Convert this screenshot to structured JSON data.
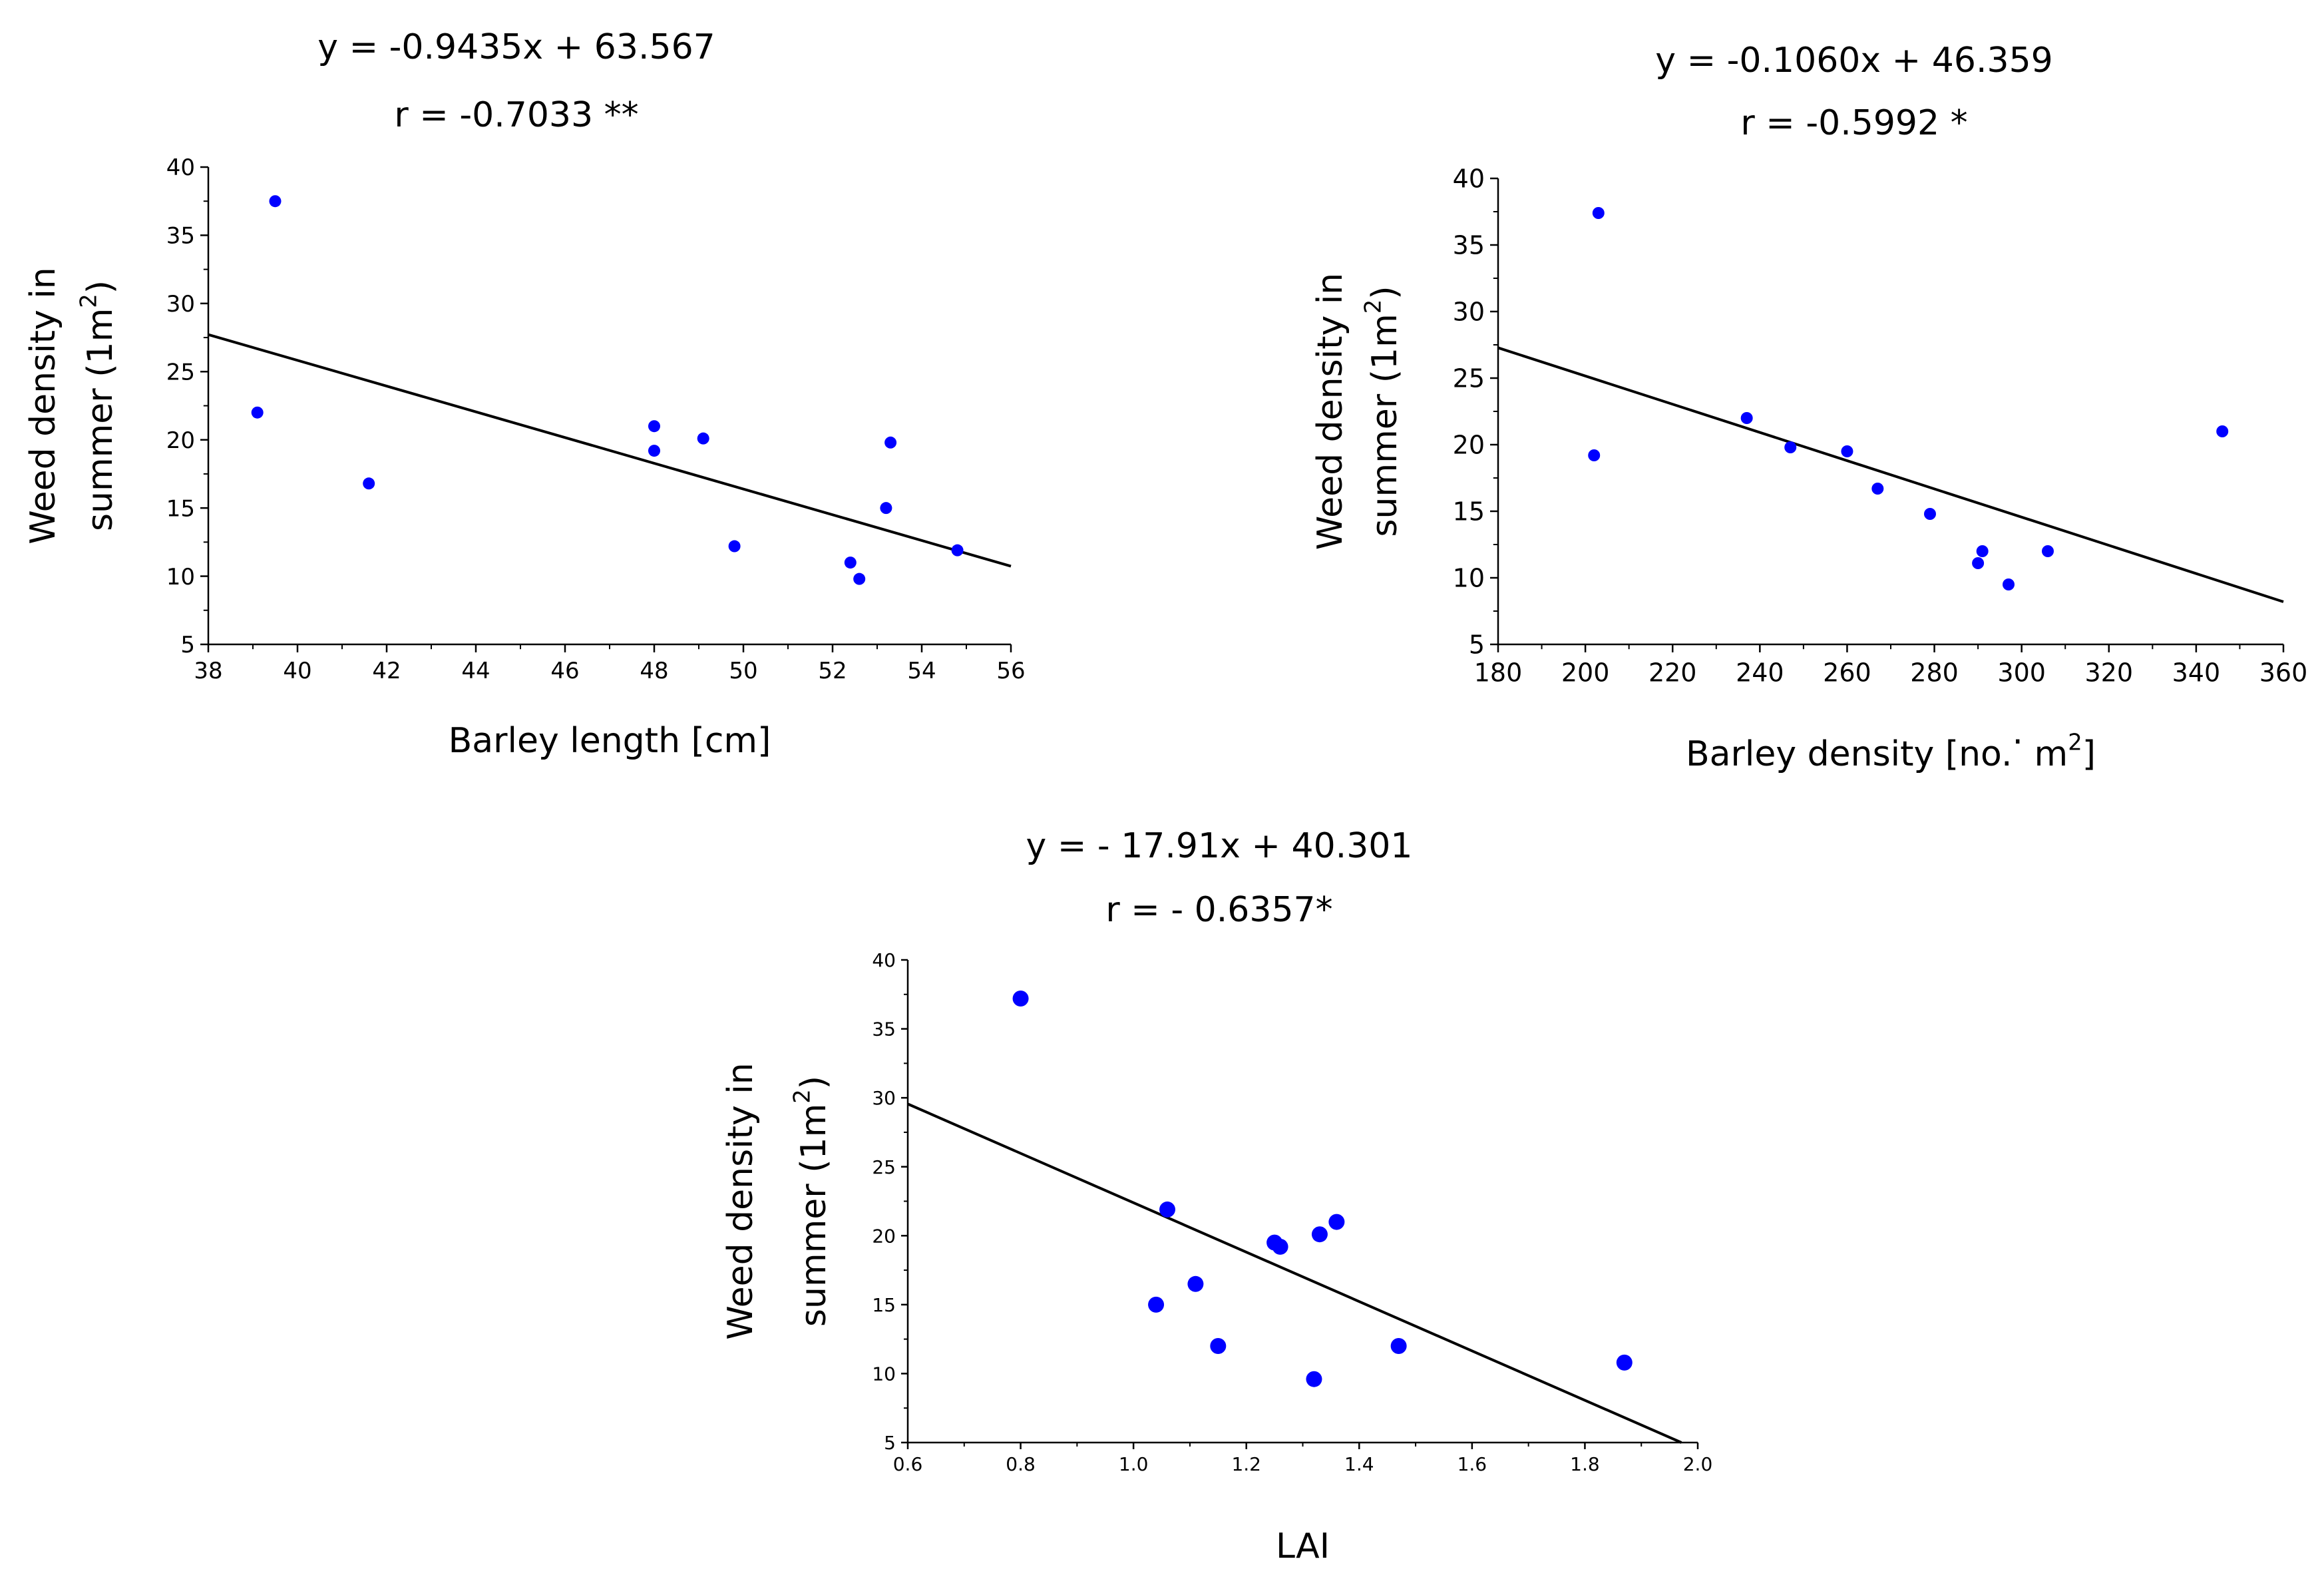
{
  "chart_data": [
    {
      "type": "scatter",
      "title": "y = -0.9435x + 63.567",
      "subtitle": "r =  -0.7033 **",
      "xlabel": "Barley length [cm]",
      "ylabel_line1": "Weed density in",
      "ylabel_line2": "summer (1m",
      "ylabel_sup": "2",
      "ylabel_close": ")",
      "xlim": [
        38,
        56
      ],
      "ylim": [
        5,
        40
      ],
      "xticks": [
        38,
        40,
        42,
        44,
        46,
        48,
        50,
        52,
        54,
        56
      ],
      "yticks": [
        5,
        10,
        15,
        20,
        25,
        30,
        35,
        40
      ],
      "points": [
        {
          "x": 39.1,
          "y": 22.0
        },
        {
          "x": 39.5,
          "y": 37.5
        },
        {
          "x": 41.6,
          "y": 16.8
        },
        {
          "x": 48.0,
          "y": 21.0
        },
        {
          "x": 48.0,
          "y": 19.2
        },
        {
          "x": 49.1,
          "y": 20.1
        },
        {
          "x": 49.8,
          "y": 12.2
        },
        {
          "x": 52.4,
          "y": 11.0
        },
        {
          "x": 52.6,
          "y": 9.8
        },
        {
          "x": 53.2,
          "y": 15.0
        },
        {
          "x": 53.3,
          "y": 19.8
        },
        {
          "x": 54.8,
          "y": 11.9
        }
      ],
      "fit": {
        "slope": -0.9435,
        "intercept": 63.567
      }
    },
    {
      "type": "scatter",
      "title": "y = -0.1060x + 46.359",
      "subtitle": "r = -0.5992 *",
      "xlabel": "Barley density [no.",
      "xlabel_dot": "·",
      "xlabel_tail": " m",
      "xlabel_sup": "2",
      "xlabel_close": "]",
      "ylabel_line1": "Weed density in",
      "ylabel_line2": "summer (1m",
      "ylabel_sup": "2",
      "ylabel_close": ")",
      "xlim": [
        180,
        360
      ],
      "ylim": [
        5,
        40
      ],
      "xticks": [
        180,
        200,
        220,
        240,
        260,
        280,
        300,
        320,
        340,
        360
      ],
      "yticks": [
        5,
        10,
        15,
        20,
        25,
        30,
        35,
        40
      ],
      "points": [
        {
          "x": 203,
          "y": 37.4
        },
        {
          "x": 202,
          "y": 19.2
        },
        {
          "x": 237,
          "y": 22.0
        },
        {
          "x": 247,
          "y": 19.8
        },
        {
          "x": 260,
          "y": 19.5
        },
        {
          "x": 267,
          "y": 16.7
        },
        {
          "x": 279,
          "y": 14.8
        },
        {
          "x": 290,
          "y": 11.1
        },
        {
          "x": 291,
          "y": 12.0
        },
        {
          "x": 297,
          "y": 9.5
        },
        {
          "x": 306,
          "y": 12.0
        },
        {
          "x": 346,
          "y": 21.0
        }
      ],
      "fit": {
        "slope": -0.106,
        "intercept": 46.359
      }
    },
    {
      "type": "scatter",
      "title": "y = - 17.91x + 40.301",
      "subtitle": "r =  - 0.6357*",
      "xlabel": "LAI",
      "ylabel_line1": "Weed density in",
      "ylabel_line2": "summer (1m",
      "ylabel_sup": "2",
      "ylabel_close": ")",
      "xlim": [
        0.6,
        2.0
      ],
      "ylim": [
        5,
        40
      ],
      "xticks": [
        "0.6",
        "0.8",
        "1.0",
        "1.2",
        "1.4",
        "1.6",
        "1.8",
        "2.0"
      ],
      "yticks": [
        5,
        10,
        15,
        20,
        25,
        30,
        35,
        40
      ],
      "points": [
        {
          "x": 0.8,
          "y": 37.2
        },
        {
          "x": 1.06,
          "y": 21.9
        },
        {
          "x": 1.04,
          "y": 15.0
        },
        {
          "x": 1.11,
          "y": 16.5
        },
        {
          "x": 1.15,
          "y": 12.0
        },
        {
          "x": 1.25,
          "y": 19.5
        },
        {
          "x": 1.26,
          "y": 19.2
        },
        {
          "x": 1.33,
          "y": 20.1
        },
        {
          "x": 1.36,
          "y": 21.0
        },
        {
          "x": 1.32,
          "y": 9.6
        },
        {
          "x": 1.47,
          "y": 12.0
        },
        {
          "x": 1.87,
          "y": 10.8
        }
      ],
      "fit": {
        "slope": -17.91,
        "intercept": 40.301
      }
    }
  ],
  "colors": {
    "points": "#0000ff",
    "lines": "#000000"
  }
}
